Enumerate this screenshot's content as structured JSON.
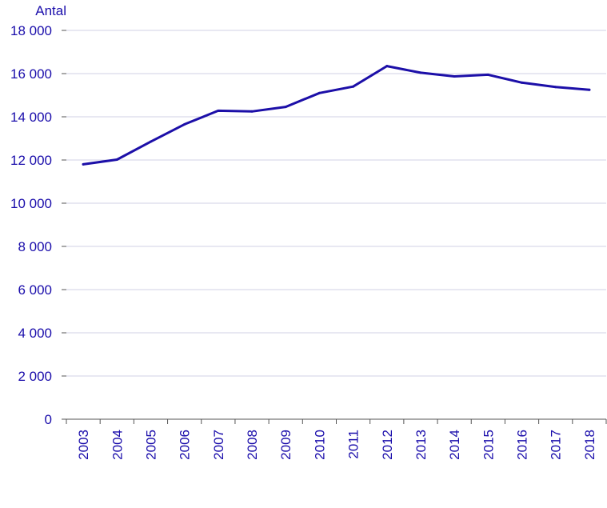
{
  "colors": {
    "text": "#1a0dab",
    "line": "#1c0fa8",
    "grid": "#d0d0e6",
    "axis": "#555555"
  },
  "chart_data": {
    "type": "line",
    "ylabel": "Antal",
    "x": [
      "2003",
      "2004",
      "2005",
      "2006",
      "2007",
      "2008",
      "2009",
      "2010",
      "2011",
      "2012",
      "2013",
      "2014",
      "2015",
      "2016",
      "2017",
      "2018"
    ],
    "series": [
      {
        "values": [
          11800,
          12020,
          12850,
          13650,
          14280,
          14250,
          14460,
          15100,
          15400,
          16350,
          16040,
          15870,
          15950,
          15580,
          15380,
          15250
        ]
      }
    ],
    "ylim": [
      0,
      18000
    ],
    "yticks": [
      0,
      2000,
      4000,
      6000,
      8000,
      10000,
      12000,
      14000,
      16000,
      18000
    ],
    "ytick_labels": [
      "0",
      "2 000",
      "4 000",
      "6 000",
      "8 000",
      "10 000",
      "12 000",
      "14 000",
      "16 000",
      "18 000"
    ],
    "grid": true
  }
}
